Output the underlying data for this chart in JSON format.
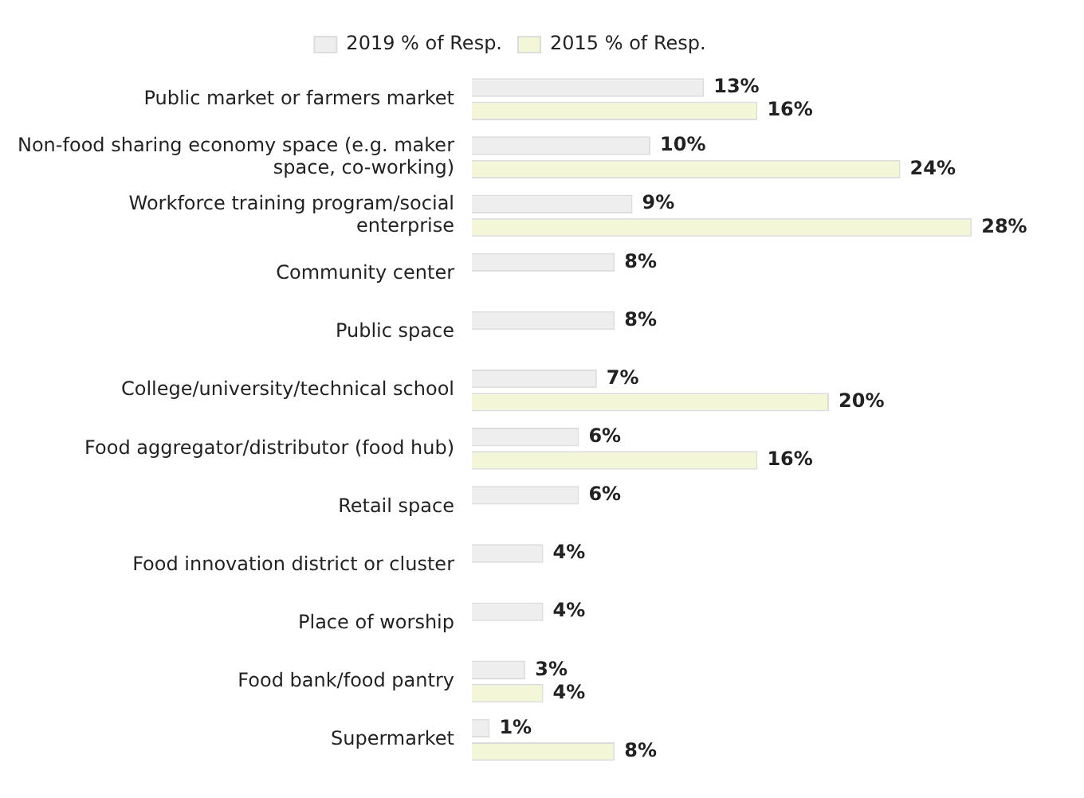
{
  "chart_data": {
    "type": "bar",
    "orientation": "horizontal",
    "legend": "top",
    "categories": [
      "Public market or farmers market",
      "Non-food sharing economy space (e.g. maker space, co-working)",
      "Workforce training program/social enterprise",
      "Community center",
      "Public space",
      "College/university/technical school",
      "Food aggregator/distributor (food hub)",
      "Retail space",
      "Food innovation district or cluster",
      "Place of worship",
      "Food bank/food pantry",
      "Supermarket"
    ],
    "series": [
      {
        "name": "2019 % of Resp.",
        "color": "#eeeeee",
        "values": [
          13,
          10,
          9,
          8,
          8,
          7,
          6,
          6,
          4,
          4,
          3,
          1
        ],
        "value_labels": [
          "13%",
          "10%",
          "9%",
          "8%",
          "8%",
          "7%",
          "6%",
          "6%",
          "4%",
          "4%",
          "3%",
          "1%"
        ]
      },
      {
        "name": "2015 % of Resp.",
        "color": "#f4f6d8",
        "values": [
          16,
          24,
          28,
          null,
          null,
          20,
          16,
          null,
          null,
          null,
          4,
          8
        ],
        "value_labels": [
          "16%",
          "24%",
          "28%",
          null,
          null,
          "20%",
          "16%",
          null,
          null,
          null,
          "4%",
          "8%"
        ]
      }
    ]
  }
}
